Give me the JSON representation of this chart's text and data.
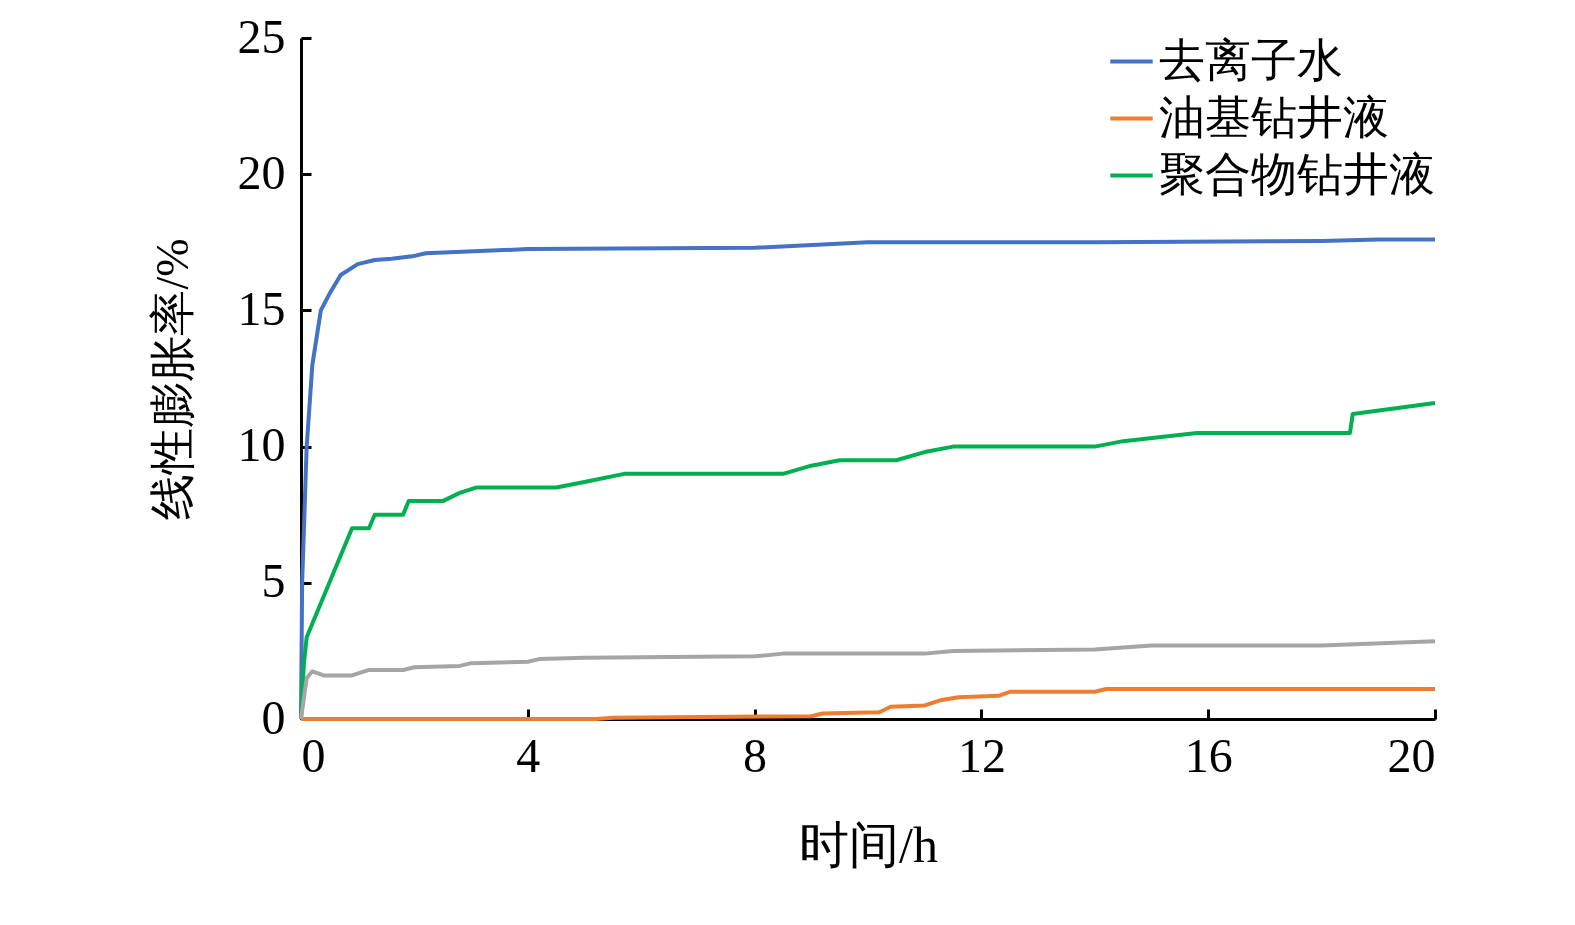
{
  "chart_data": {
    "type": "line",
    "xlabel": "时间/h",
    "ylabel": "线性膨胀率/%",
    "xlim": [
      0,
      20
    ],
    "xticks": [
      0,
      4,
      8,
      12,
      16,
      20
    ],
    "ylim": [
      0,
      25
    ],
    "yticks": [
      0,
      5,
      10,
      15,
      20,
      25
    ],
    "grid": false,
    "legend": "top right",
    "marker": "none",
    "line_style": "solid",
    "series": [
      {
        "name": "去离子水",
        "color": "#4472c4",
        "x": [
          0,
          0.02,
          0.1,
          0.2,
          0.35,
          0.5,
          0.7,
          1,
          1.3,
          1.6,
          2,
          2.2,
          4,
          8,
          10,
          14,
          18,
          19,
          20
        ],
        "values": [
          0,
          5,
          10,
          13,
          15,
          15.6,
          16.3,
          16.7,
          16.85,
          16.9,
          17,
          17.1,
          17.25,
          17.3,
          17.5,
          17.5,
          17.55,
          17.6,
          17.6
        ]
      },
      {
        "name": "油基钻井液",
        "color": "#ed7d31",
        "x": [
          0,
          5.2,
          5.5,
          9,
          9.2,
          10.2,
          10.4,
          11,
          11.3,
          11.6,
          12.3,
          12.5,
          14,
          14.2,
          20
        ],
        "values": [
          0,
          0,
          0.05,
          0.1,
          0.2,
          0.25,
          0.45,
          0.5,
          0.7,
          0.8,
          0.85,
          1,
          1,
          1.1,
          1.1
        ]
      },
      {
        "color": "#a5a5a5",
        "x": [
          0,
          0.1,
          0.2,
          0.4,
          0.9,
          1.2,
          1.8,
          2,
          2.8,
          3,
          4,
          4.2,
          5,
          8,
          8.5,
          11,
          11.5,
          14,
          15,
          18,
          20
        ],
        "values": [
          0,
          1.5,
          1.75,
          1.6,
          1.6,
          1.8,
          1.8,
          1.9,
          1.95,
          2.05,
          2.1,
          2.2,
          2.25,
          2.3,
          2.4,
          2.4,
          2.5,
          2.55,
          2.7,
          2.7,
          2.85
        ]
      },
      {
        "name": "聚合物钻井液",
        "color": "#00b050",
        "x": [
          0,
          0.05,
          0.1,
          0.3,
          0.5,
          0.7,
          0.9,
          1.2,
          1.3,
          1.8,
          1.9,
          2.5,
          2.8,
          3.1,
          4.5,
          5,
          5.7,
          8.5,
          9,
          9.5,
          10.5,
          11,
          11.5,
          14,
          14.5,
          15.8,
          18.5,
          18.55,
          20
        ],
        "values": [
          0,
          2,
          3,
          4,
          5,
          6,
          7,
          7,
          7.5,
          7.5,
          8,
          8,
          8.3,
          8.5,
          8.5,
          8.7,
          9,
          9,
          9.3,
          9.5,
          9.5,
          9.8,
          10,
          10,
          10.2,
          10.5,
          10.5,
          11.2,
          11.6
        ]
      }
    ]
  }
}
